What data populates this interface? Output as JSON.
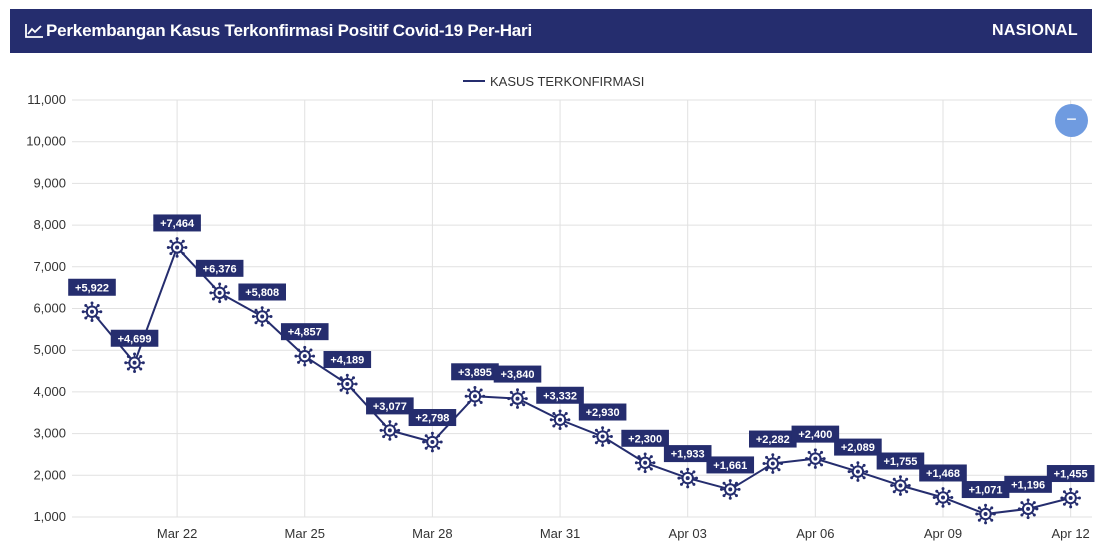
{
  "header": {
    "title": "Perkembangan Kasus Terkonfirmasi Positif Covid-19 Per-Hari",
    "title_icon": "line-chart-icon",
    "scope": "NASIONAL"
  },
  "controls": {
    "collapse_symbol": "−",
    "collapse_icon": "minus-icon"
  },
  "colors": {
    "header_bg": "#252d6e",
    "line": "#252d6e",
    "label_bg": "#252d6e",
    "button": "#6f9be0"
  },
  "chart_data": {
    "type": "line",
    "title": "",
    "xlabel": "",
    "ylabel": "",
    "legend": {
      "position": "top-center",
      "entries": [
        "KASUS TERKONFIRMASI"
      ]
    },
    "ylim": [
      1000,
      11000
    ],
    "yticks": [
      "1,000",
      "2,000",
      "3,000",
      "4,000",
      "5,000",
      "6,000",
      "7,000",
      "8,000",
      "9,000",
      "10,000",
      "11,000"
    ],
    "xticks": [
      "Mar 22",
      "Mar 25",
      "Mar 28",
      "Mar 31",
      "Apr 03",
      "Apr 06",
      "Apr 09",
      "Apr 12"
    ],
    "grid": true,
    "marker": "virus-icon",
    "series": [
      {
        "name": "KASUS TERKONFIRMASI",
        "x": [
          "Mar 20",
          "Mar 21",
          "Mar 22",
          "Mar 23",
          "Mar 24",
          "Mar 25",
          "Mar 26",
          "Mar 27",
          "Mar 28",
          "Mar 29",
          "Mar 30",
          "Mar 31",
          "Apr 01",
          "Apr 02",
          "Apr 03",
          "Apr 04",
          "Apr 05",
          "Apr 06",
          "Apr 07",
          "Apr 08",
          "Apr 09",
          "Apr 10",
          "Apr 11",
          "Apr 12"
        ],
        "values": [
          5922,
          4699,
          7464,
          6376,
          5808,
          4857,
          4189,
          3077,
          2798,
          3895,
          3840,
          3332,
          2930,
          2300,
          1933,
          1661,
          2282,
          2400,
          2089,
          1755,
          1468,
          1071,
          1196,
          1455
        ],
        "labels": [
          "+5,922",
          "+4,699",
          "+7,464",
          "+6,376",
          "+5,808",
          "+4,857",
          "+4,189",
          "+3,077",
          "+2,798",
          "+3,895",
          "+3,840",
          "+3,332",
          "+2,930",
          "+2,300",
          "+1,933",
          "+1,661",
          "+2,282",
          "+2,400",
          "+2,089",
          "+1,755",
          "+1,468",
          "+1,071",
          "+1,196",
          "+1,455"
        ]
      }
    ]
  }
}
